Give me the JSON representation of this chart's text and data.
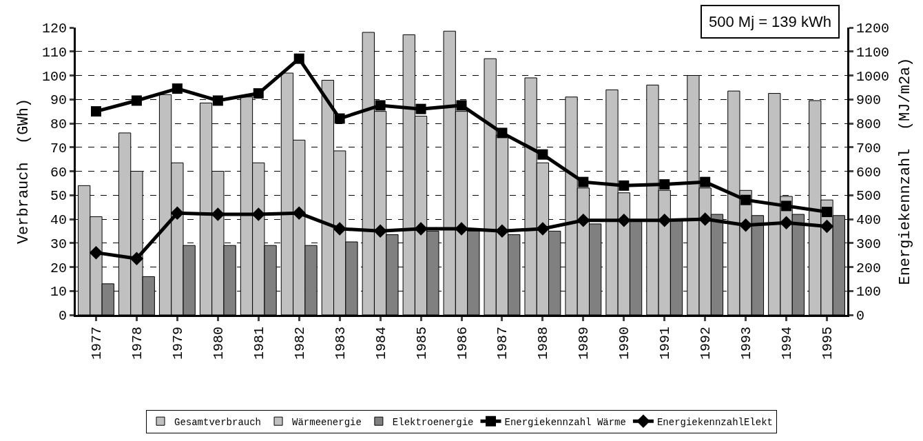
{
  "chart_data": {
    "type": "bar",
    "ylabel": "Verbrauch  (GWh)",
    "y2label": "Energiekennzahl  (MJ/m2a)",
    "annotations": [
      "500 Mj = 139 kWh"
    ],
    "categories": [
      "1977",
      "1978",
      "1979",
      "1980",
      "1981",
      "1982",
      "1983",
      "1984",
      "1985",
      "1986",
      "1987",
      "1988",
      "1989",
      "1990",
      "1991",
      "1992",
      "1993",
      "1994",
      "1995"
    ],
    "series": [
      {
        "name": "Gesamtverbrauch",
        "color": "#c0c0c0",
        "values": [
          54,
          76,
          92,
          88.5,
          91,
          101,
          98,
          118,
          117,
          118.5,
          107,
          99,
          91,
          94,
          96,
          100,
          93.5,
          92.5,
          89.5
        ]
      },
      {
        "name": "Wärmeenergie",
        "color": "#c0c0c0",
        "values": [
          41,
          60,
          63.5,
          60,
          63.5,
          73,
          68.5,
          85,
          83,
          85,
          75,
          63.5,
          53,
          51,
          52,
          53,
          52,
          49.5,
          48
        ]
      },
      {
        "name": "Elektroenergie",
        "color": "#808080",
        "values": [
          13,
          16,
          29,
          29,
          29,
          29,
          30.5,
          33.5,
          35,
          35,
          33.5,
          35,
          38,
          39,
          39.5,
          42,
          41.5,
          42,
          41.5
        ]
      },
      {
        "name": "Energiekennzahl Wärme",
        "type": "line",
        "axis": "y2",
        "marker": "square",
        "color": "#000000",
        "values": [
          850,
          895,
          945,
          895,
          925,
          1070,
          820,
          875,
          860,
          875,
          760,
          670,
          555,
          540,
          545,
          555,
          480,
          455,
          430
        ]
      },
      {
        "name": "EnergiekennzahlElekt",
        "type": "line",
        "axis": "y2",
        "marker": "diamond",
        "color": "#000000",
        "values": [
          260,
          235,
          425,
          420,
          420,
          425,
          360,
          350,
          360,
          360,
          350,
          360,
          395,
          395,
          395,
          400,
          375,
          385,
          370
        ]
      }
    ],
    "ylim": [
      0,
      120
    ],
    "yticks": [
      0,
      10,
      20,
      30,
      40,
      50,
      60,
      70,
      80,
      90,
      100,
      110,
      120
    ],
    "y2lim": [
      0,
      1200
    ],
    "y2ticks": [
      0,
      100,
      200,
      300,
      400,
      500,
      600,
      700,
      800,
      900,
      1000,
      1100,
      1200
    ],
    "grid": "y",
    "legend": "bottom"
  }
}
